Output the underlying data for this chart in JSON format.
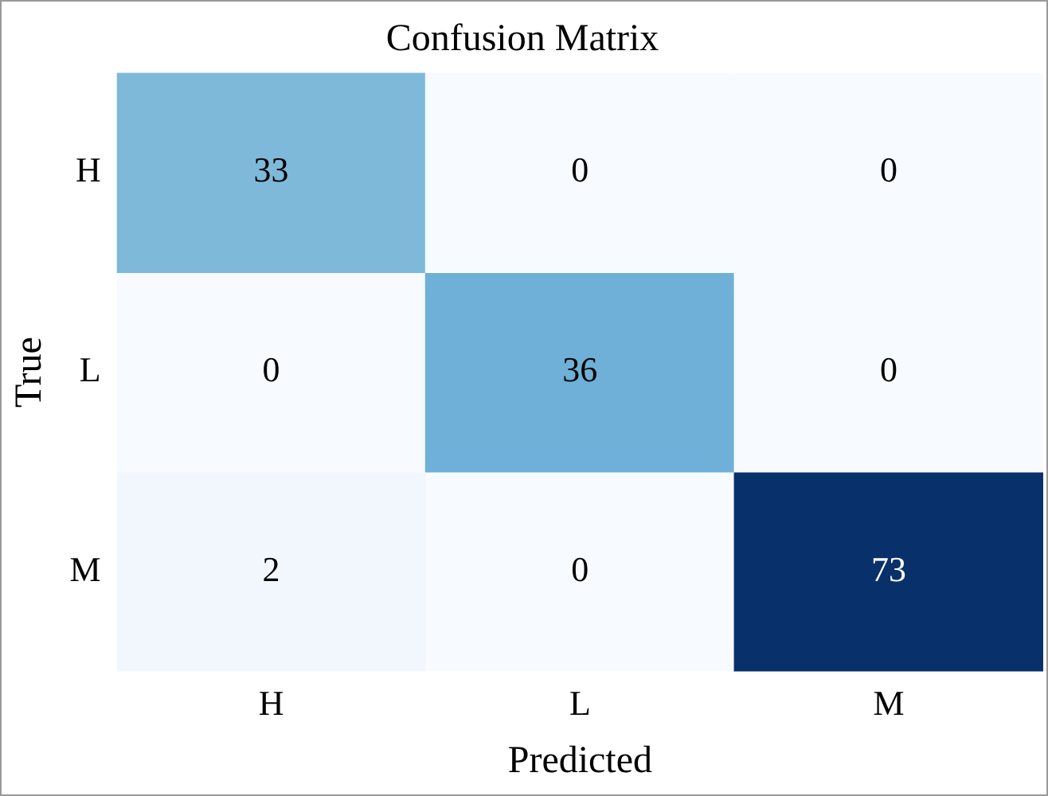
{
  "chart_data": {
    "type": "heatmap",
    "title": "Confusion Matrix",
    "xlabel": "Predicted",
    "ylabel": "True",
    "categories": [
      "H",
      "L",
      "M"
    ],
    "y_categories": [
      "H",
      "L",
      "M"
    ],
    "cells": [
      [
        33,
        0,
        0
      ],
      [
        0,
        36,
        0
      ],
      [
        2,
        0,
        73
      ]
    ],
    "data_labels": true
  }
}
